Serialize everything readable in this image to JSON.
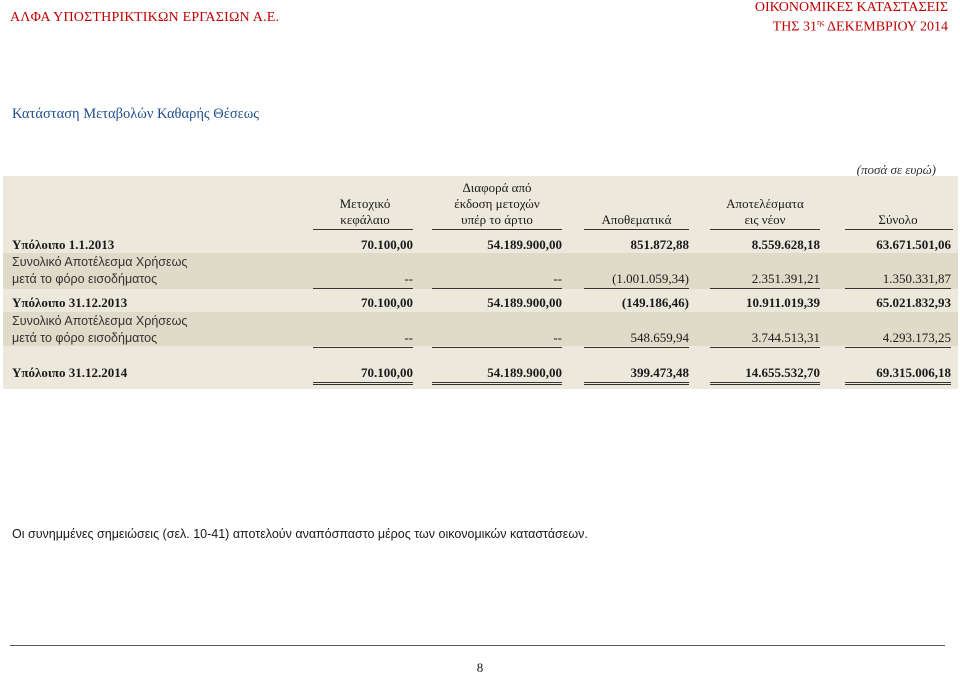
{
  "header": {
    "company": "ΑΛΦΑ ΥΠΟΣΤΗΡΙΚΤΙΚΩΝ ΕΡΓΑΣΙΩΝ Α.Ε.",
    "report_title": "ΟΙΚΟΝΟΜΙΚΕΣ ΚΑΤΑΣΤΑΣΕΙΣ",
    "date_prefix": "ΤΗΣ 31",
    "date_sup": "ης",
    "date_suffix": " ΔΕΚΕΜΒΡΙΟΥ 2014"
  },
  "page_title": "Κατάσταση Μεταβολών Καθαρής Θέσεως",
  "currency_note": "(ποσά σε ευρώ)",
  "columns": {
    "share_capital": [
      "Μετοχικό",
      "κεφάλαιο"
    ],
    "share_premium": [
      "Διαφορά από",
      "έκδοση μετοχών",
      "υπέρ το άρτιο"
    ],
    "reserves": [
      "Αποθεματικά"
    ],
    "retained": [
      "Αποτελέσματα",
      "εις νέον"
    ],
    "total": [
      "Σύνολο"
    ]
  },
  "rows": [
    {
      "label": "Υπόλοιπο 1.1.2013",
      "values": [
        "70.100,00",
        "54.189.900,00",
        "851.872,88",
        "8.559.628,18",
        "63.671.501,06"
      ]
    },
    {
      "label_line1": "Συνολικό Αποτέλεσμα Χρήσεως",
      "label_line2": "μετά το φόρο εισοδήματος",
      "values": [
        "--",
        "--",
        "(1.001.059,34)",
        "2.351.391,21",
        "1.350.331,87"
      ]
    },
    {
      "label": "Υπόλοιπο 31.12.2013",
      "values": [
        "70.100,00",
        "54.189.900,00",
        "(149.186,46)",
        "10.911.019,39",
        "65.021.832,93"
      ]
    },
    {
      "label_line1": "Συνολικό Αποτέλεσμα Χρήσεως",
      "label_line2": "μετά το φόρο εισοδήματος",
      "values": [
        "--",
        "--",
        "548.659,94",
        "3.744.513,31",
        "4.293.173,25"
      ]
    },
    {
      "label": "Υπόλοιπο 31.12.2014",
      "values": [
        "70.100,00",
        "54.189.900,00",
        "399.473,48",
        "14.655.532,70",
        "69.315.006,18"
      ]
    }
  ],
  "footnote": "Οι συνημμένες σημειώσεις (σελ. 10-41) αποτελούν αναπόσπαστο μέρος των οικονομικών καταστάσεων.",
  "page_number": "8"
}
